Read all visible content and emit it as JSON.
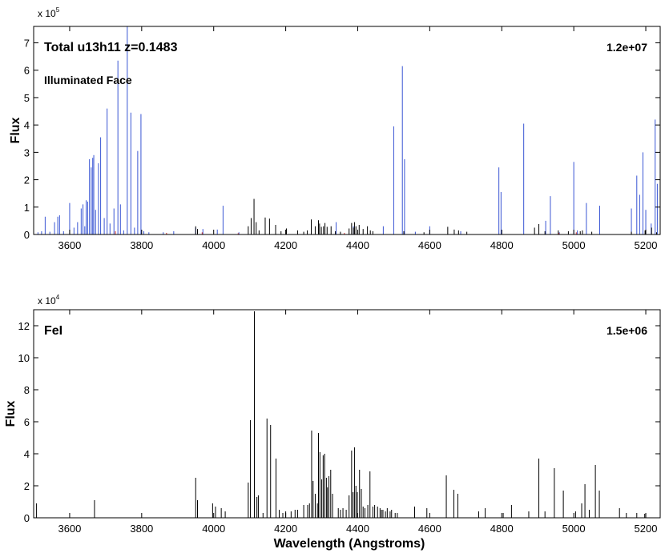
{
  "chart_data": [
    {
      "type": "bar",
      "panel": "top",
      "title": "Total u13h11 z=0.1483",
      "subtitle": "Illuminated Face",
      "annotation_right": "1.2e+07",
      "xlabel": "",
      "ylabel": "Flux",
      "y_multiplier_base": "x 10",
      "y_multiplier_exp": "5",
      "xlim": [
        3500,
        5240
      ],
      "ylim": [
        0,
        7.6
      ],
      "xticks": [
        3600,
        3800,
        4000,
        4200,
        4400,
        4600,
        4800,
        5000,
        5200
      ],
      "yticks": [
        0,
        1,
        2,
        3,
        4,
        5,
        6,
        7
      ],
      "grid": false,
      "series": [
        {
          "color": "#3a56d4",
          "lines": [
            [
              3512,
              0.08
            ],
            [
              3522,
              0.12
            ],
            [
              3532,
              0.65
            ],
            [
              3545,
              0.1
            ],
            [
              3558,
              0.45
            ],
            [
              3567,
              0.65
            ],
            [
              3572,
              0.7
            ],
            [
              3583,
              0.12
            ],
            [
              3600,
              1.15
            ],
            [
              3612,
              0.25
            ],
            [
              3622,
              0.45
            ],
            [
              3632,
              0.95
            ],
            [
              3637,
              1.1
            ],
            [
              3642,
              0.3
            ],
            [
              3646,
              1.25
            ],
            [
              3650,
              1.2
            ],
            [
              3655,
              2.75
            ],
            [
              3660,
              2.45
            ],
            [
              3664,
              2.8
            ],
            [
              3667,
              2.9
            ],
            [
              3672,
              0.9
            ],
            [
              3680,
              2.6
            ],
            [
              3686,
              3.55
            ],
            [
              3696,
              0.6
            ],
            [
              3704,
              4.6
            ],
            [
              3712,
              0.4
            ],
            [
              3723,
              0.95
            ],
            [
              3734,
              6.35
            ],
            [
              3741,
              1.1
            ],
            [
              3750,
              0.15
            ],
            [
              3760,
              7.6
            ],
            [
              3770,
              4.45
            ],
            [
              3780,
              0.25
            ],
            [
              3789,
              3.05
            ],
            [
              3798,
              4.4
            ],
            [
              3806,
              0.12
            ],
            [
              3820,
              0.08
            ],
            [
              3860,
              0.08
            ],
            [
              3889,
              0.12
            ],
            [
              3950,
              0.25
            ],
            [
              3970,
              0.2
            ],
            [
              4010,
              0.18
            ],
            [
              4026,
              1.05
            ],
            [
              4070,
              0.08
            ],
            [
              4340,
              0.45
            ],
            [
              4388,
              0.3
            ],
            [
              4471,
              0.3
            ],
            [
              4500,
              3.95
            ],
            [
              4524,
              6.15
            ],
            [
              4530,
              2.75
            ],
            [
              4560,
              0.1
            ],
            [
              4600,
              0.3
            ],
            [
              4686,
              0.12
            ],
            [
              4792,
              2.45
            ],
            [
              4798,
              1.55
            ],
            [
              4861,
              4.05
            ],
            [
              4922,
              0.5
            ],
            [
              4935,
              1.4
            ],
            [
              4960,
              0.08
            ],
            [
              5000,
              2.65
            ],
            [
              5010,
              0.15
            ],
            [
              5035,
              1.15
            ],
            [
              5072,
              1.05
            ],
            [
              5160,
              0.95
            ],
            [
              5175,
              2.15
            ],
            [
              5183,
              1.45
            ],
            [
              5192,
              3.0
            ],
            [
              5200,
              0.9
            ],
            [
              5215,
              0.4
            ],
            [
              5226,
              4.2
            ],
            [
              5232,
              1.85
            ]
          ]
        },
        {
          "color": "#000000",
          "lines": [
            [
              3950,
              0.3
            ],
            [
              3955,
              0.2
            ],
            [
              4096,
              0.3
            ],
            [
              4104,
              0.6
            ],
            [
              4112,
              1.3
            ],
            [
              4118,
              0.45
            ],
            [
              4126,
              0.15
            ],
            [
              4143,
              0.62
            ],
            [
              4155,
              0.58
            ],
            [
              4172,
              0.35
            ],
            [
              4187,
              0.12
            ],
            [
              4202,
              0.22
            ],
            [
              4233,
              0.15
            ],
            [
              4250,
              0.1
            ],
            [
              4260,
              0.15
            ],
            [
              4271,
              0.55
            ],
            [
              4282,
              0.3
            ],
            [
              4291,
              0.52
            ],
            [
              4294,
              0.4
            ],
            [
              4299,
              0.28
            ],
            [
              4305,
              0.3
            ],
            [
              4309,
              0.42
            ],
            [
              4315,
              0.28
            ],
            [
              4326,
              0.3
            ],
            [
              4338,
              0.12
            ],
            [
              4352,
              0.1
            ],
            [
              4376,
              0.22
            ],
            [
              4383,
              0.42
            ],
            [
              4388,
              0.25
            ],
            [
              4391,
              0.45
            ],
            [
              4395,
              0.3
            ],
            [
              4404,
              0.35
            ],
            [
              4415,
              0.2
            ],
            [
              4427,
              0.3
            ],
            [
              4435,
              0.15
            ],
            [
              4442,
              0.12
            ],
            [
              4528,
              0.12
            ],
            [
              4584,
              0.08
            ],
            [
              4650,
              0.28
            ],
            [
              4668,
              0.18
            ],
            [
              4680,
              0.15
            ],
            [
              4703,
              0.1
            ],
            [
              4891,
              0.25
            ],
            [
              4903,
              0.38
            ],
            [
              4920,
              0.12
            ],
            [
              4957,
              0.15
            ],
            [
              4985,
              0.12
            ],
            [
              5018,
              0.12
            ],
            [
              5024,
              0.15
            ],
            [
              5050,
              0.1
            ],
            [
              5160,
              0.1
            ],
            [
              5198,
              0.15
            ],
            [
              5216,
              0.25
            ],
            [
              5230,
              0.08
            ]
          ]
        },
        {
          "color": "#d03030",
          "lines": [
            [
              3727,
              0.12
            ],
            [
              3869,
              0.06
            ],
            [
              3968,
              0.08
            ],
            [
              4068,
              0.05
            ],
            [
              4363,
              0.06
            ],
            [
              4959,
              0.06
            ],
            [
              5007,
              0.08
            ]
          ]
        }
      ]
    },
    {
      "type": "bar",
      "panel": "bottom",
      "title": "FeI",
      "annotation_right": "1.5e+06",
      "xlabel": "Wavelength (Angstroms)",
      "ylabel": "Flux",
      "y_multiplier_base": "x 10",
      "y_multiplier_exp": "4",
      "xlim": [
        3500,
        5240
      ],
      "ylim": [
        0,
        13
      ],
      "xticks": [
        3600,
        3800,
        4000,
        4200,
        4400,
        4600,
        4800,
        5000,
        5200
      ],
      "yticks": [
        0,
        2,
        4,
        6,
        8,
        10,
        12
      ],
      "grid": false,
      "series": [
        {
          "color": "#000000",
          "lines": [
            [
              3508,
              0.9
            ],
            [
              3669,
              1.1
            ],
            [
              3950,
              2.5
            ],
            [
              3955,
              1.1
            ],
            [
              3997,
              0.9
            ],
            [
              4005,
              0.7
            ],
            [
              4021,
              0.6
            ],
            [
              4032,
              0.4
            ],
            [
              4096,
              2.2
            ],
            [
              4102,
              6.1
            ],
            [
              4113,
              12.9
            ],
            [
              4120,
              1.3
            ],
            [
              4124,
              1.4
            ],
            [
              4137,
              0.3
            ],
            [
              4148,
              6.2
            ],
            [
              4158,
              5.8
            ],
            [
              4173,
              3.7
            ],
            [
              4182,
              0.5
            ],
            [
              4192,
              0.3
            ],
            [
              4200,
              0.4
            ],
            [
              4215,
              0.4
            ],
            [
              4226,
              0.5
            ],
            [
              4233,
              0.5
            ],
            [
              4250,
              0.8
            ],
            [
              4261,
              0.8
            ],
            [
              4266,
              0.9
            ],
            [
              4272,
              5.45
            ],
            [
              4276,
              2.3
            ],
            [
              4282,
              1.5
            ],
            [
              4288,
              0.9
            ],
            [
              4291,
              5.3
            ],
            [
              4295,
              4.1
            ],
            [
              4300,
              2.4
            ],
            [
              4304,
              3.9
            ],
            [
              4308,
              4.0
            ],
            [
              4313,
              2.5
            ],
            [
              4316,
              1.9
            ],
            [
              4320,
              2.6
            ],
            [
              4325,
              3.0
            ],
            [
              4330,
              1.5
            ],
            [
              4346,
              0.6
            ],
            [
              4352,
              0.5
            ],
            [
              4359,
              0.6
            ],
            [
              4368,
              0.5
            ],
            [
              4376,
              1.4
            ],
            [
              4383,
              4.2
            ],
            [
              4387,
              1.6
            ],
            [
              4391,
              4.4
            ],
            [
              4395,
              2.0
            ],
            [
              4399,
              1.6
            ],
            [
              4405,
              3.0
            ],
            [
              4410,
              1.8
            ],
            [
              4415,
              0.7
            ],
            [
              4420,
              0.6
            ],
            [
              4428,
              0.8
            ],
            [
              4434,
              2.9
            ],
            [
              4442,
              0.7
            ],
            [
              4447,
              0.8
            ],
            [
              4455,
              0.7
            ],
            [
              4462,
              0.6
            ],
            [
              4466,
              0.5
            ],
            [
              4470,
              0.5
            ],
            [
              4477,
              0.4
            ],
            [
              4482,
              0.6
            ],
            [
              4490,
              0.4
            ],
            [
              4494,
              0.5
            ],
            [
              4504,
              0.3
            ],
            [
              4510,
              0.3
            ],
            [
              4558,
              0.7
            ],
            [
              4592,
              0.6
            ],
            [
              4646,
              2.65
            ],
            [
              4667,
              1.75
            ],
            [
              4678,
              1.5
            ],
            [
              4736,
              0.4
            ],
            [
              4754,
              0.6
            ],
            [
              4804,
              0.3
            ],
            [
              4827,
              0.8
            ],
            [
              4875,
              0.4
            ],
            [
              4903,
              3.7
            ],
            [
              4920,
              0.4
            ],
            [
              4946,
              3.1
            ],
            [
              4971,
              1.7
            ],
            [
              5005,
              0.4
            ],
            [
              5022,
              0.9
            ],
            [
              5031,
              2.1
            ],
            [
              5043,
              0.5
            ],
            [
              5060,
              3.3
            ],
            [
              5071,
              1.7
            ],
            [
              5127,
              0.6
            ],
            [
              5146,
              0.3
            ],
            [
              5175,
              0.3
            ],
            [
              5197,
              0.25
            ]
          ]
        }
      ]
    }
  ]
}
